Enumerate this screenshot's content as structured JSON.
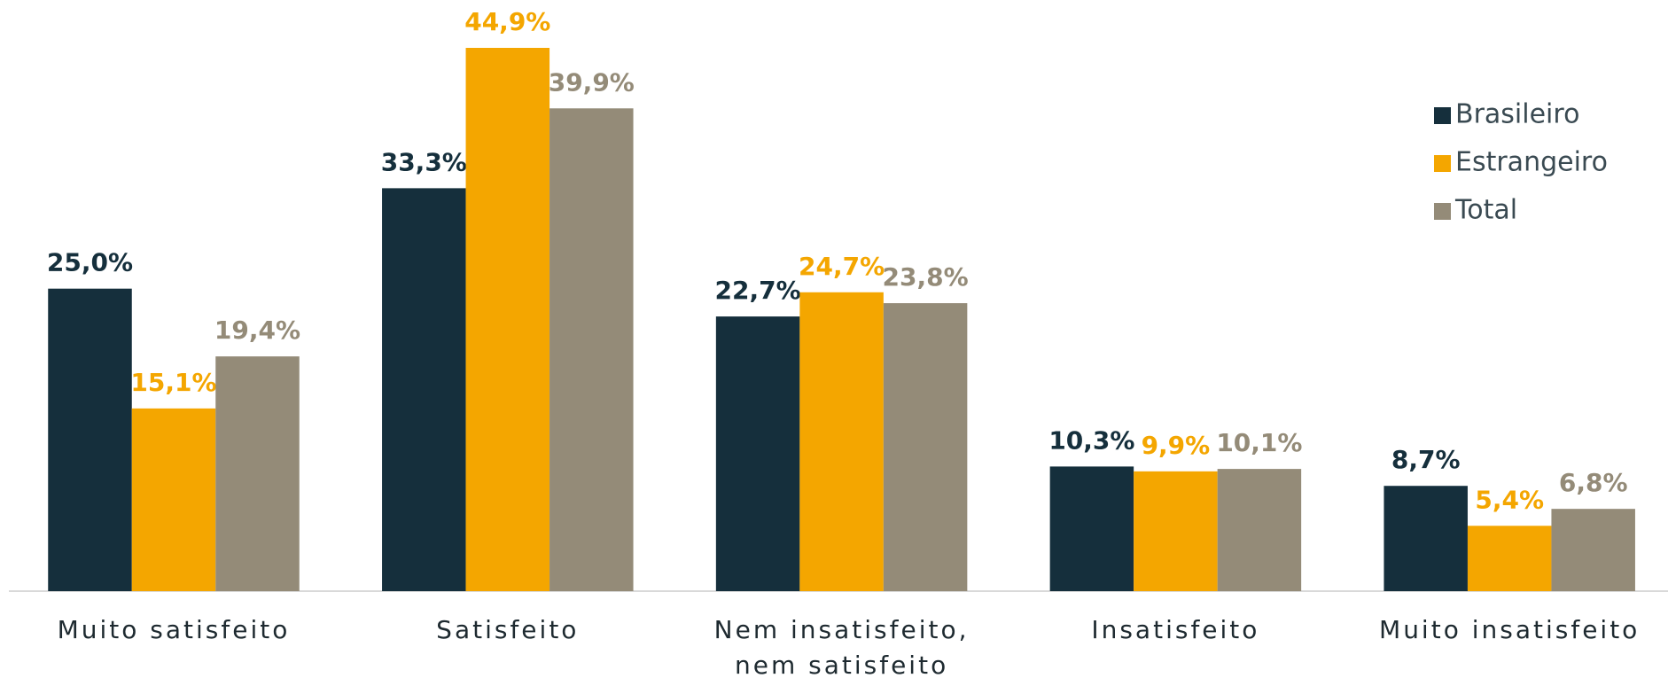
{
  "chart_data": {
    "type": "bar",
    "categories": [
      "Muito satisfeito",
      "Satisfeito",
      "Nem insatisfeito, nem satisfeito",
      "Insatisfeito",
      "Muito insatisfeito"
    ],
    "series": [
      {
        "name": "Brasileiro",
        "color": "#152f3c",
        "values": [
          25.0,
          33.3,
          22.7,
          10.3,
          8.7
        ],
        "value_labels": [
          "25,0%",
          "33,3%",
          "22,7%",
          "10,3%",
          "8,7%"
        ]
      },
      {
        "name": "Estrangeiro",
        "color": "#f4a600",
        "values": [
          15.1,
          44.9,
          24.7,
          9.9,
          5.4
        ],
        "value_labels": [
          "15,1%",
          "44,9%",
          "24,7%",
          "9,9%",
          "5,4%"
        ]
      },
      {
        "name": "Total",
        "color": "#948b78",
        "values": [
          19.4,
          39.9,
          23.8,
          10.1,
          6.8
        ],
        "value_labels": [
          "19,4%",
          "39,9%",
          "23,8%",
          "10,1%",
          "6,8%"
        ]
      }
    ],
    "legend": "upper right"
  }
}
